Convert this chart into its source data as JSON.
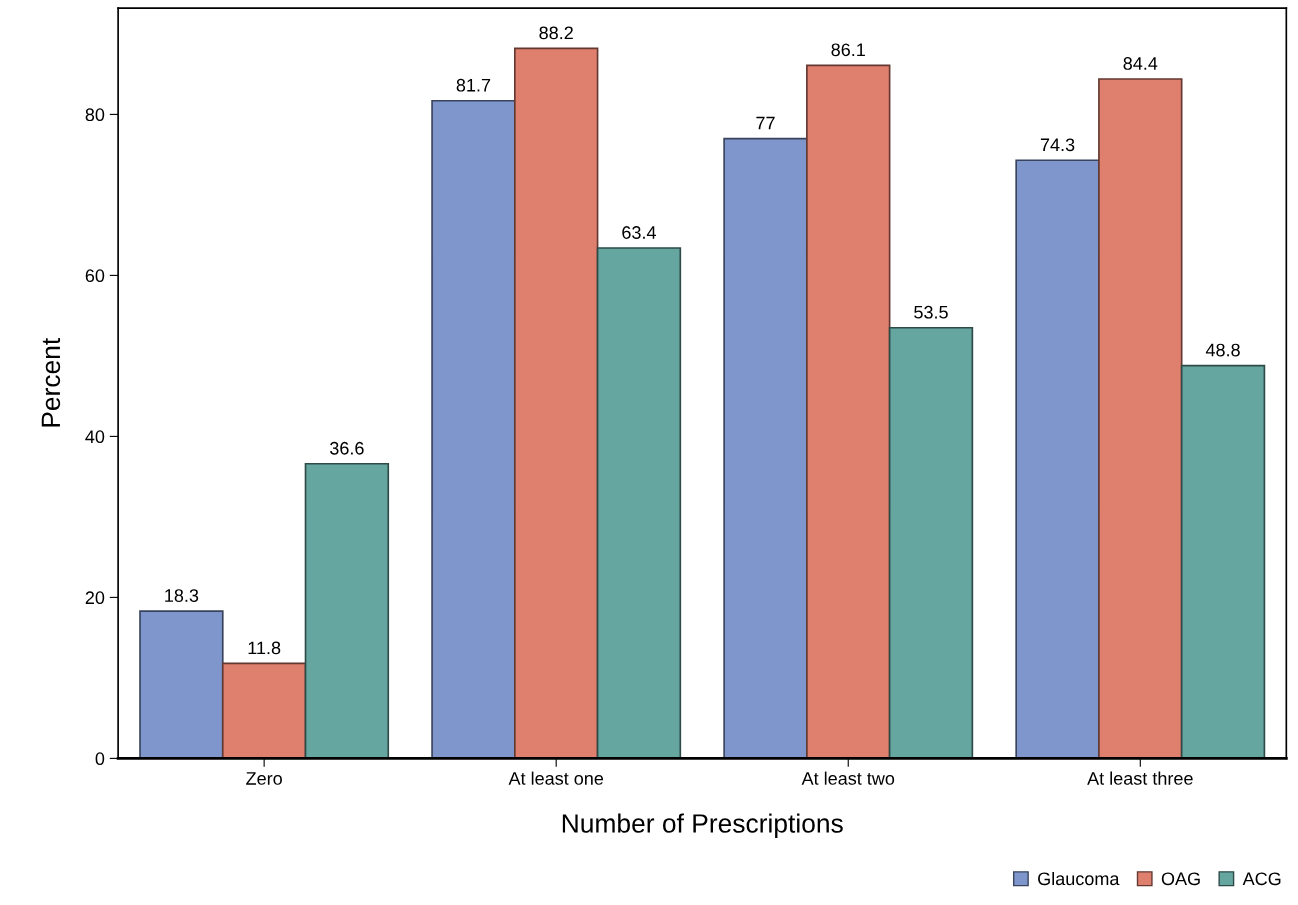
{
  "chart_data": {
    "type": "bar",
    "xlabel": "Number of Prescriptions",
    "ylabel": "Percent",
    "categories": [
      "Zero",
      "At least one",
      "At least two",
      "At least three"
    ],
    "series": [
      {
        "name": "Glaucoma",
        "color": "#7f96cc",
        "values": [
          18.3,
          81.7,
          77,
          74.3
        ]
      },
      {
        "name": "OAG",
        "color": "#df7f6e",
        "values": [
          11.8,
          88.2,
          86.1,
          84.4
        ]
      },
      {
        "name": "ACG",
        "color": "#66a6a0",
        "values": [
          36.6,
          63.4,
          53.5,
          48.8
        ]
      }
    ],
    "ylim": [
      0,
      93.2
    ],
    "yticks": [
      0,
      20,
      40,
      60,
      80
    ],
    "data_labels": true,
    "legend": "bottom right",
    "grid": false
  }
}
